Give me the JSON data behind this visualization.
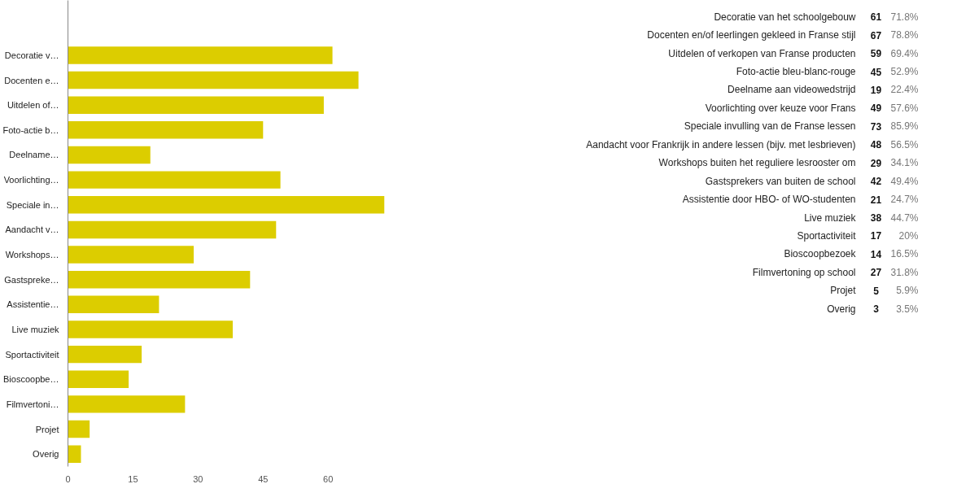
{
  "chart_data": [
    {
      "type": "bar",
      "orientation": "horizontal",
      "color": "#dccd00",
      "categories": [
        "Decoratie v…",
        "Docenten e…",
        "Uitdelen of…",
        "Foto-actie b…",
        "Deelname…",
        "Voorlichting…",
        "Speciale in…",
        "Aandacht v…",
        "Workshops…",
        "Gastspreke…",
        "Assistentie…",
        "Live muziek",
        "Sportactiviteit",
        "Bioscoopbe…",
        "Filmvertoni…",
        "Projet",
        "Overig"
      ],
      "values": [
        61,
        67,
        59,
        45,
        19,
        49,
        73,
        48,
        29,
        42,
        21,
        38,
        17,
        14,
        27,
        5,
        3
      ],
      "xlim": [
        0,
        73
      ],
      "xticks": [
        0,
        15,
        30,
        45,
        60
      ],
      "grid": false,
      "legend": false
    },
    {
      "type": "other",
      "annotations": [
        "Decoratie van het schoolgebouw",
        "61",
        "71.8%",
        "Docenten en/of leerlingen gekleed in Franse stijl",
        "67",
        "78.8%",
        "Uitdelen of verkopen van Franse producten",
        "59",
        "69.4%",
        "Foto-actie bleu-blanc-rouge",
        "45",
        "52.9%",
        "Deelname aan videowedstrijd",
        "19",
        "22.4%",
        "Voorlichting over keuze voor Frans",
        "49",
        "57.6%",
        "Speciale invulling van de Franse lessen",
        "73",
        "85.9%",
        "Aandacht voor Frankrijk in andere lessen (bijv. met lesbrieven)",
        "48",
        "56.5%",
        "Workshops buiten het reguliere lesrooster om",
        "29",
        "34.1%",
        "Gastsprekers van buiten de school",
        "42",
        "49.4%",
        "Assistentie door HBO- of WO-studenten",
        "21",
        "24.7%",
        "Live muziek",
        "38",
        "44.7%",
        "Sportactiviteit",
        "17",
        "20%",
        "Bioscoopbezoek",
        "14",
        "16.5%",
        "Filmvertoning op school",
        "27",
        "31.8%",
        "Projet",
        "5",
        "5.9%",
        "Overig",
        "3",
        "3.5%"
      ]
    }
  ]
}
